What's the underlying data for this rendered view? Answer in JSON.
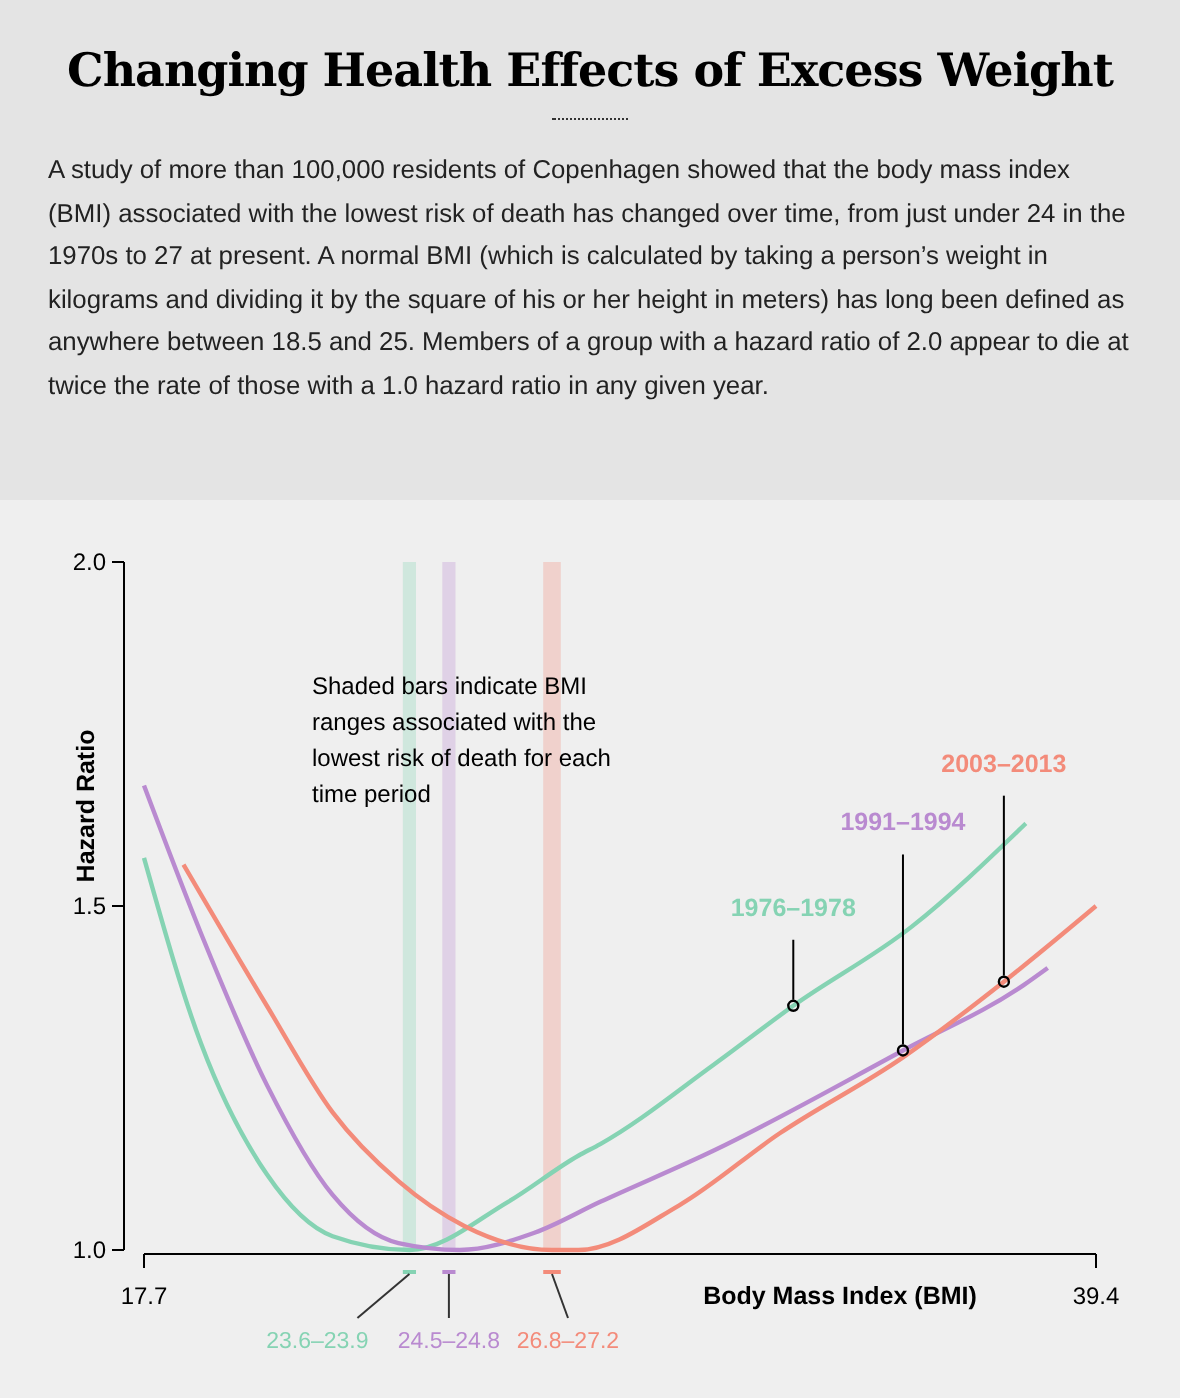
{
  "chart_data": {
    "type": "line",
    "title": "Changing Health Effects of Excess Weight",
    "subtitle": "A study of more than 100,000 residents of Copenhagen showed that the body mass index (BMI) associated with the lowest risk of death has changed over time, from just under 24 in the 1970s to 27 at present. A normal BMI (which is calculated by taking a person’s weight in kilograms and dividing it by the square of his or her height in meters) has long been defined as anywhere between 18.5 and 25. Members of a group with a hazard ratio of 2.0 appear to die at twice the rate of those with a 1.0 hazard ratio in any given year.",
    "xlabel": "Body Mass Index (BMI)",
    "ylabel": "Hazard Ratio",
    "xlim": [
      17.7,
      39.4
    ],
    "xticks": [
      17.7,
      39.4
    ],
    "ylim": [
      1,
      2
    ],
    "yticks": [
      {
        "value": 1,
        "label": "1.0"
      },
      {
        "value": 1.5,
        "label": "1.5"
      },
      {
        "value": 2,
        "label": "2.0"
      }
    ],
    "grid": false,
    "legend": false,
    "marker": "none",
    "line_style": "solid",
    "series": [
      {
        "color": "#85d3b3",
        "x": [
          17.7,
          19.0,
          20.5,
          22.0,
          23.75,
          26.0,
          27.6,
          28.1,
          30.7,
          32.5,
          35.2,
          37.8
        ],
        "values": [
          1.57,
          1.3,
          1.11,
          1.02,
          1.0,
          1.07,
          1.137,
          1.154,
          1.27,
          1.355,
          1.47,
          1.62
        ]
      },
      {
        "color": "#b98ad0",
        "x": [
          17.7,
          19.0,
          20.5,
          22.0,
          23.5,
          24.9,
          26.6,
          28.1,
          30.7,
          35.0,
          37.75,
          38.3
        ],
        "values": [
          1.675,
          1.46,
          1.24,
          1.08,
          1.01,
          1.0,
          1.025,
          1.07,
          1.145,
          1.29,
          1.385,
          1.41
        ]
      },
      {
        "color": "#f38b7a",
        "x": [
          18.6,
          20.5,
          22.0,
          23.5,
          25.0,
          27.0,
          27.6,
          29.9,
          32.2,
          35.0,
          37.3,
          39.4
        ],
        "values": [
          1.56,
          1.355,
          1.2,
          1.1,
          1.035,
          1.0,
          1.0,
          1.065,
          1.17,
          1.28,
          1.39,
          1.5
        ]
      }
    ],
    "bands": [
      {
        "axis": "x",
        "from": 23.6,
        "to": 23.9,
        "label": "23.6–23.9",
        "color": "#85d3b3"
      },
      {
        "axis": "x",
        "from": 24.5,
        "to": 24.8,
        "label": "24.5–24.8",
        "color": "#b98ad0"
      },
      {
        "axis": "x",
        "from": 26.8,
        "to": 27.2,
        "label": "26.8–27.2",
        "color": "#f38b7a"
      }
    ],
    "annotations": [
      {
        "text": "1976–1978",
        "x": 32.5,
        "y": 1.355
      },
      {
        "text": "1991–1994",
        "x": 35.0,
        "y": 1.29
      },
      {
        "text": "2003–2013",
        "x": 37.3,
        "y": 1.39
      },
      "Shaded bars indicate BMI ranges associated with the lowest risk of death for each time period"
    ]
  }
}
